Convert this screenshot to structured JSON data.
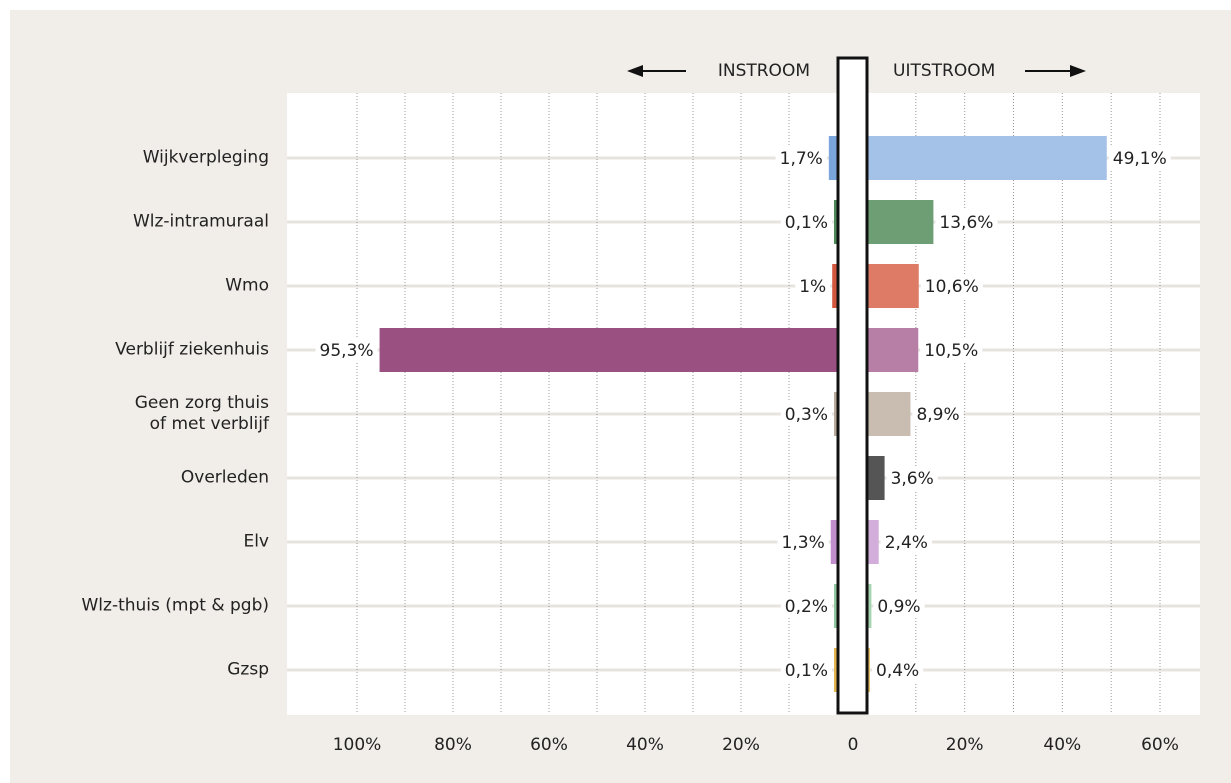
{
  "chart_data": {
    "type": "butterfly-bar",
    "categories": [
      "Wijkverpleging",
      "Wlz-intramuraal",
      "Wmo",
      "Verblijf ziekenhuis",
      "Geen zorg thuis\nof met verblijf",
      "Overleden",
      "Elv",
      "Wlz-thuis (mpt & pgb)",
      "Gzsp"
    ],
    "center_tick": 0,
    "grid": true,
    "series": [
      {
        "name": "INSTROOM",
        "side": "left",
        "colors": [
          "#7aa6dc",
          "#4f8a5a",
          "#d4573f",
          "#9b5082",
          "#b8ab9c",
          "#444444",
          "#c18fcc",
          "#8fc89e",
          "#e2b550"
        ],
        "values": [
          1.7,
          0.1,
          1,
          95.3,
          0.3,
          null,
          1.3,
          0.2,
          0.1
        ],
        "value_labels": [
          "1,7%",
          "0,1%",
          "1%",
          "95,3%",
          "0,3%",
          null,
          "1,3%",
          "0,2%",
          "0,1%"
        ],
        "xlim": [
          0,
          100
        ],
        "xticks": [
          {
            "value": 100,
            "label": "100%"
          },
          {
            "value": 80,
            "label": "80%"
          },
          {
            "value": 60,
            "label": "60%"
          },
          {
            "value": 40,
            "label": "40%"
          },
          {
            "value": 20,
            "label": "20%"
          }
        ],
        "minor_xticks": [
          90,
          70,
          50,
          30,
          10
        ]
      },
      {
        "name": "UITSTROOM",
        "side": "right",
        "colors": [
          "#a4c2e8",
          "#6e9e74",
          "#dd7b66",
          "#b77ea6",
          "#c8bdb0",
          "#555555",
          "#d4aedb",
          "#a6d4b0",
          "#e8c36a"
        ],
        "values": [
          49.1,
          13.6,
          10.6,
          10.5,
          8.9,
          3.6,
          2.4,
          0.9,
          0.4
        ],
        "value_labels": [
          "49,1%",
          "13,6%",
          "10,6%",
          "10,5%",
          "8,9%",
          "3,6%",
          "2,4%",
          "0,9%",
          "0,4%"
        ],
        "xlim": [
          0,
          60
        ],
        "xticks": [
          {
            "value": 20,
            "label": "20%"
          },
          {
            "value": 40,
            "label": "40%"
          },
          {
            "value": 60,
            "label": "60%"
          }
        ],
        "minor_xticks": [
          10,
          30,
          50
        ]
      }
    ]
  }
}
